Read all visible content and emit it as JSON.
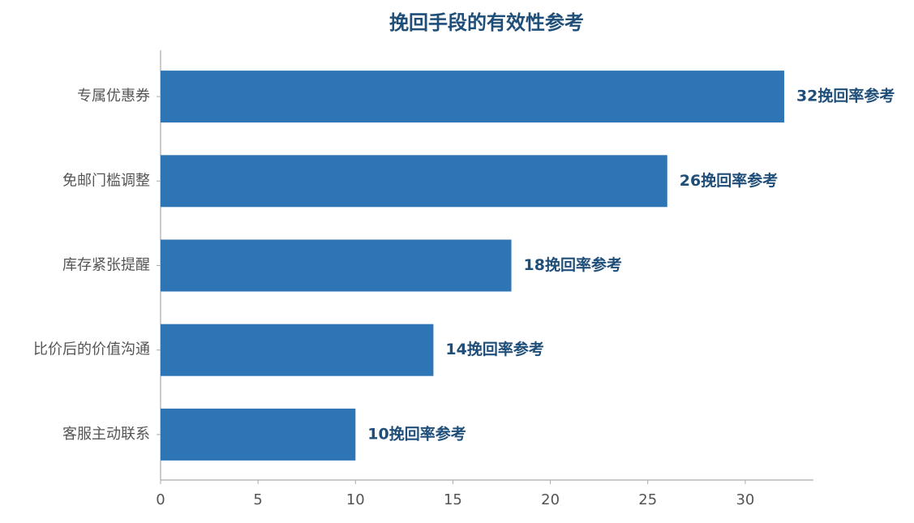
{
  "chart_data": {
    "type": "barh",
    "title": "挽回手段的有效性参考",
    "categories": [
      "专属优惠券",
      "免邮门槛调整",
      "库存紧张提醒",
      "比价后的价值沟通",
      "客服主动联系"
    ],
    "values": [
      32,
      26,
      18,
      14,
      10
    ],
    "value_labels": [
      "32挽回率参考",
      "26挽回率参考",
      "18挽回率参考",
      "14挽回率参考",
      "10挽回率参考"
    ],
    "color": "#2e75b6",
    "xlim": [
      0,
      33.5
    ],
    "xticks": [
      0,
      5,
      10,
      15,
      20,
      25,
      30
    ]
  }
}
